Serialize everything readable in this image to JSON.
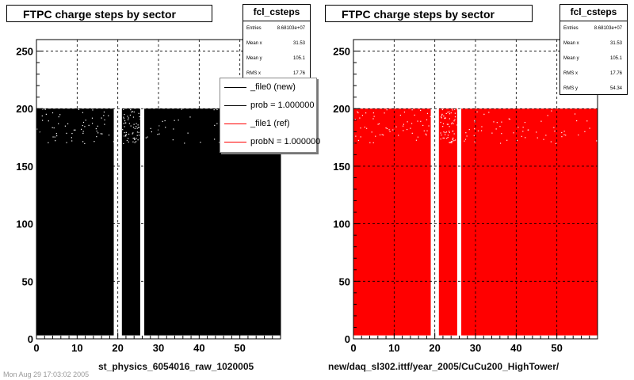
{
  "panels": [
    {
      "title": "FTPC charge steps by sector",
      "stats": {
        "name": "fcl_csteps",
        "rows": [
          {
            "label": "Entries",
            "value": "8.68103e+07"
          },
          {
            "label": "Mean x",
            "value": "31.53"
          },
          {
            "label": "Mean y",
            "value": "105.1"
          },
          {
            "label": "RMS x",
            "value": "17.76"
          }
        ]
      },
      "legend": [
        {
          "text": "_file0 (new)",
          "color": "#000000"
        },
        {
          "text": "prob = 1.000000",
          "color": "#000000"
        },
        {
          "text": "_file1 (ref)",
          "color": "#ff0000"
        },
        {
          "text": "probN = 1.000000",
          "color": "#ff0000"
        }
      ],
      "xcaption": "st_physics_6054016_raw_1020005",
      "fill_color": "#000000"
    },
    {
      "title": "FTPC charge steps by sector",
      "stats": {
        "name": "fcl_csteps",
        "rows": [
          {
            "label": "Entries",
            "value": "8.68103e+07"
          },
          {
            "label": "Mean x",
            "value": "31.53"
          },
          {
            "label": "Mean y",
            "value": "105.1"
          },
          {
            "label": "RMS x",
            "value": "17.76"
          },
          {
            "label": "RMS y",
            "value": "54.34"
          }
        ]
      },
      "legend": [],
      "xcaption": "new/daq_sl302.ittf/year_2005/CuCu200_HighTower/",
      "fill_color": "#ff0000"
    }
  ],
  "footer": "Mon Aug 29 17:03:02 2005",
  "chart_data": [
    {
      "type": "heatmap",
      "title": "FTPC charge steps by sector",
      "xlabel": "st_physics_6054016_raw_1020005",
      "ylabel": "",
      "xlim": [
        0,
        60
      ],
      "ylim": [
        0,
        260
      ],
      "xticks": [
        0,
        10,
        20,
        30,
        40,
        50
      ],
      "yticks": [
        0,
        50,
        100,
        150,
        200,
        250
      ],
      "grid": true,
      "filled_x_ranges": [
        [
          0,
          19
        ],
        [
          21,
          25.5
        ],
        [
          26.5,
          60
        ]
      ],
      "filled_y_range": [
        3,
        200
      ],
      "color": "#000000",
      "series_names": [
        "_file0 (new)",
        "_file1 (ref)"
      ],
      "legend_position": "top-right"
    },
    {
      "type": "heatmap",
      "title": "FTPC charge steps by sector",
      "xlabel": "new/daq_sl302.ittf/year_2005/CuCu200_HighTower/",
      "ylabel": "",
      "xlim": [
        0,
        60
      ],
      "ylim": [
        0,
        260
      ],
      "xticks": [
        0,
        10,
        20,
        30,
        40,
        50
      ],
      "yticks": [
        0,
        50,
        100,
        150,
        200,
        250
      ],
      "grid": true,
      "filled_x_ranges": [
        [
          0,
          19
        ],
        [
          21,
          25.5
        ],
        [
          26.5,
          60
        ]
      ],
      "filled_y_range": [
        3,
        200
      ],
      "color": "#ff0000"
    }
  ]
}
